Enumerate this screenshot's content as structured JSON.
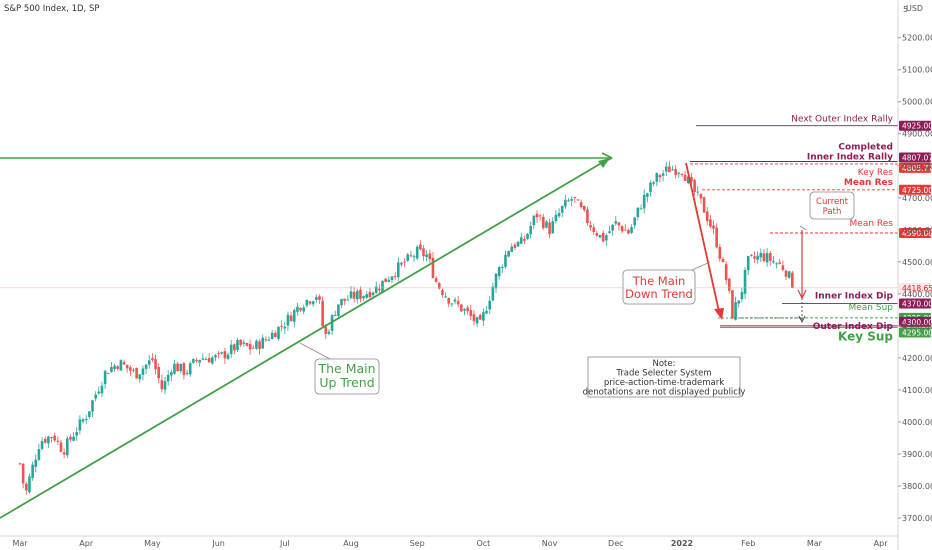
{
  "header": {
    "title": "S&P 500 Index, 1D, SP",
    "currency": "USD",
    "top_tick": "5"
  },
  "chart_data": {
    "type": "candlestick",
    "title": "S&P 500 Index, 1D, SP",
    "y_ticks": [
      3700,
      3800,
      3900,
      4000,
      4100,
      4200,
      4300,
      4400,
      4500,
      4600,
      4700,
      4800,
      4900,
      5000,
      5100,
      5200
    ],
    "y_tick_labels": [
      "3700.00",
      "3800.00",
      "3900.00",
      "4000.00",
      "4100.00",
      "4200.00",
      "4300.00",
      "4400.00",
      "4500.00",
      "4600.00",
      "4700.00",
      "4800.00",
      "4900.00",
      "5000.00",
      "5100.00",
      "5200.00"
    ],
    "ylim": [
      3647,
      5302
    ],
    "x_labels": [
      "Mar",
      "Apr",
      "May",
      "Jun",
      "Jul",
      "Aug",
      "Sep",
      "Oct",
      "Nov",
      "Dec",
      "2022",
      "Feb",
      "Mar",
      "Apr"
    ],
    "x_label_months": [
      0,
      1,
      2,
      3,
      4,
      5,
      6,
      7,
      8,
      9,
      10,
      11,
      12,
      13
    ],
    "close_path": [
      [
        0,
        3870
      ],
      [
        0.08,
        3770
      ],
      [
        0.15,
        3830
      ],
      [
        0.3,
        3940
      ],
      [
        0.5,
        3960
      ],
      [
        0.65,
        3910
      ],
      [
        0.8,
        3960
      ],
      [
        1.0,
        4020
      ],
      [
        1.3,
        4160
      ],
      [
        1.5,
        4185
      ],
      [
        1.75,
        4150
      ],
      [
        2.0,
        4195
      ],
      [
        2.15,
        4100
      ],
      [
        2.3,
        4180
      ],
      [
        2.5,
        4155
      ],
      [
        2.7,
        4200
      ],
      [
        3.0,
        4200
      ],
      [
        3.3,
        4240
      ],
      [
        3.5,
        4230
      ],
      [
        3.7,
        4255
      ],
      [
        4.0,
        4310
      ],
      [
        4.25,
        4370
      ],
      [
        4.5,
        4400
      ],
      [
        4.6,
        4260
      ],
      [
        4.8,
        4370
      ],
      [
        5.0,
        4390
      ],
      [
        5.2,
        4400
      ],
      [
        5.4,
        4420
      ],
      [
        5.65,
        4470
      ],
      [
        6.0,
        4530
      ],
      [
        6.15,
        4520
      ],
      [
        6.3,
        4430
      ],
      [
        6.5,
        4380
      ],
      [
        6.7,
        4350
      ],
      [
        6.95,
        4300
      ],
      [
        7.2,
        4460
      ],
      [
        7.4,
        4550
      ],
      [
        7.6,
        4560
      ],
      [
        7.8,
        4650
      ],
      [
        8.0,
        4600
      ],
      [
        8.2,
        4670
      ],
      [
        8.35,
        4700
      ],
      [
        8.6,
        4620
      ],
      [
        8.8,
        4570
      ],
      [
        9.0,
        4620
      ],
      [
        9.2,
        4590
      ],
      [
        9.4,
        4690
      ],
      [
        9.6,
        4760
      ],
      [
        9.8,
        4790
      ],
      [
        10.0,
        4790
      ],
      [
        10.15,
        4730
      ],
      [
        10.3,
        4680
      ],
      [
        10.5,
        4580
      ],
      [
        10.7,
        4420
      ],
      [
        10.75,
        4330
      ],
      [
        10.9,
        4410
      ],
      [
        11.0,
        4500
      ],
      [
        11.2,
        4520
      ],
      [
        11.4,
        4500
      ],
      [
        11.55,
        4480
      ],
      [
        11.7,
        4420
      ]
    ],
    "levels": [
      {
        "label": "Next Outer Index Rally",
        "value": 4925.0,
        "value_label": "4925.00",
        "color": "#8e1d55"
      },
      {
        "label": "Completed Inner Index Rally",
        "value": 4807.07,
        "value_label": "4807.07",
        "color": "#8e1d55"
      },
      {
        "label": "Key Res",
        "value": 4805.77,
        "value_label": "4805.77",
        "color": "#e53935"
      },
      {
        "label": "Mean Res",
        "value": 4725.0,
        "value_label": "4725.00",
        "color": "#e53935"
      },
      {
        "label": "Mean Res",
        "value": 4590.0,
        "value_label": "4590.00",
        "color": "#e53935"
      },
      {
        "label": "",
        "value": 4418.65,
        "value_label": "4418.65",
        "color": "#e53935"
      },
      {
        "label": "Inner Index Dip",
        "value": 4370.0,
        "value_label": "4370.00",
        "color": "#8e1d55"
      },
      {
        "label": "Mean Sup",
        "value": 4325.0,
        "value_label": "4325.00",
        "color": "#43a047"
      },
      {
        "label": "Outer Index Dip",
        "value": 4300.0,
        "value_label": "4300.00",
        "color": "#8e1d55"
      },
      {
        "label": "Key Sup",
        "value": 4295.0,
        "value_label": "4295.00",
        "color": "#43a047"
      }
    ],
    "annotations": {
      "up_trend": "The Main\nUp Trend",
      "down_trend": "The Main\nDown Trend",
      "current_path": "Current\nPath",
      "note": "Note:\nTrade Selecter System\nprice-action-time-trademark\ndenotations are not displayed publicly",
      "completed_label_1": "Completed",
      "completed_label_2": "Inner Index Rally"
    },
    "colors": {
      "up": "#26a69a",
      "down": "#ef5350",
      "trend_up": "#43a047",
      "trend_down": "#e53935",
      "plum": "#8e1d55"
    }
  }
}
